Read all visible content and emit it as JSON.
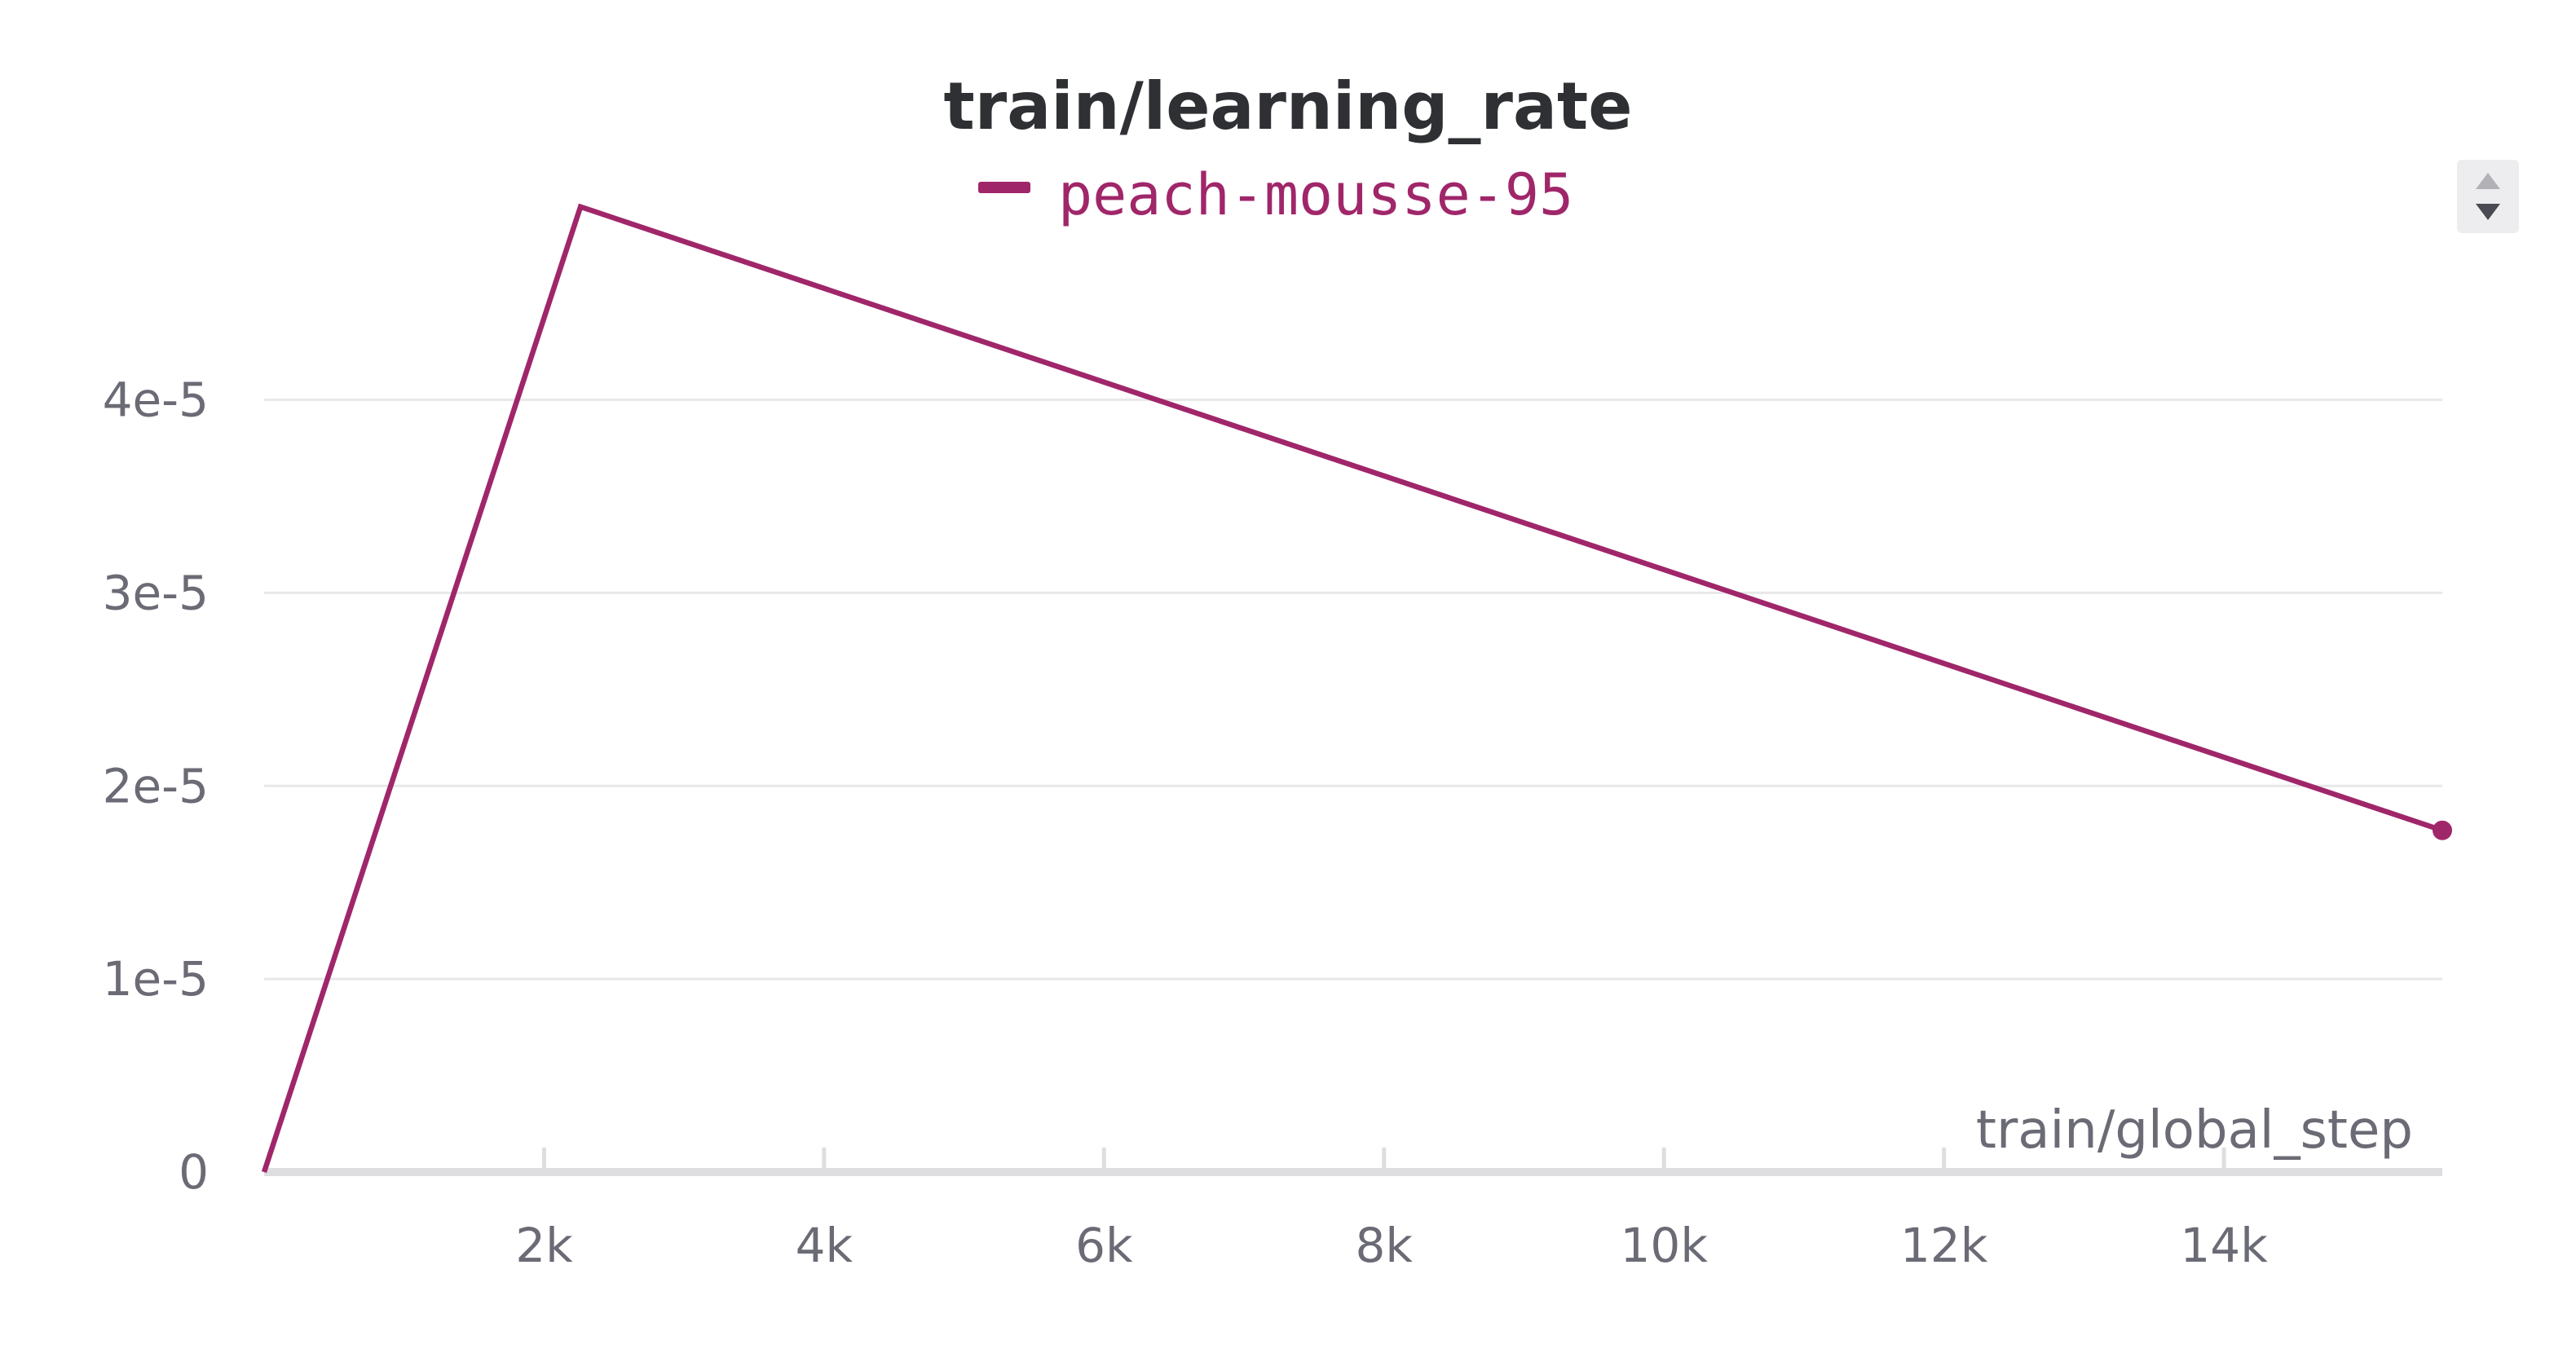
{
  "chart_data": {
    "type": "line",
    "title": "train/learning_rate",
    "xlabel": "train/global_step",
    "ylabel": "",
    "x_ticks": [
      2000,
      4000,
      6000,
      8000,
      10000,
      12000,
      14000
    ],
    "x_tick_labels": [
      "2k",
      "4k",
      "6k",
      "8k",
      "10k",
      "12k",
      "14k"
    ],
    "y_ticks": [
      0,
      1e-05,
      2e-05,
      3e-05,
      4e-05
    ],
    "y_tick_labels": [
      "0",
      "1e-5",
      "2e-5",
      "3e-5",
      "4e-5"
    ],
    "xlim": [
      0,
      15560
    ],
    "ylim": [
      0,
      5.1e-05
    ],
    "grid": true,
    "legend_position": "top-center",
    "series": [
      {
        "name": "peach-mousse-95",
        "color": "#a0266a",
        "x": [
          0,
          2260,
          15560
        ],
        "y": [
          0,
          5e-05,
          1.77e-05
        ],
        "end_marker": true
      }
    ]
  },
  "controls": {
    "sort_icon": "up-down-triangles-icon"
  }
}
